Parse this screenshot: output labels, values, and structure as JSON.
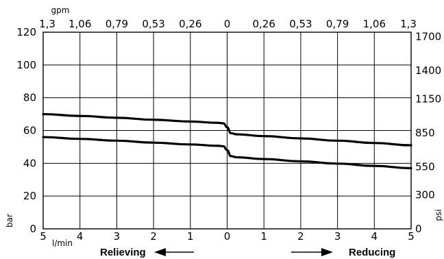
{
  "chart_data": {
    "type": "line",
    "x": [
      -5,
      -4,
      -3,
      -2,
      -1,
      -0.25,
      -0.1,
      0,
      0.1,
      0.25,
      1,
      2,
      3,
      4,
      5
    ],
    "x_tick_labels": [
      "5",
      "4",
      "3",
      "2",
      "1",
      "0",
      "1",
      "2",
      "3",
      "4",
      "5"
    ],
    "x_top_tick_labels": [
      "1,3",
      "1,06",
      "0,79",
      "0,53",
      "0,26",
      "0",
      "0,26",
      "0,53",
      "0,79",
      "1,06",
      "1,3"
    ],
    "ylim": [
      0,
      120
    ],
    "yticks": [
      0,
      20,
      40,
      60,
      80,
      100,
      120
    ],
    "y_right_tick_labels": [
      {
        "text": "0",
        "at": 0
      },
      {
        "text": "300",
        "at": 20.7
      },
      {
        "text": "550",
        "at": 37.9
      },
      {
        "text": "850",
        "at": 58.6
      },
      {
        "text": "1150",
        "at": 79.3
      },
      {
        "text": "1400",
        "at": 96.6
      },
      {
        "text": "1700",
        "at": 117.2
      }
    ],
    "series": [
      {
        "values": [
          70,
          68.9,
          67.8,
          66.6,
          65.5,
          64.7,
          64.4,
          62,
          58.4,
          57.7,
          56.6,
          55.2,
          53.8,
          52.4,
          51
        ]
      },
      {
        "values": [
          56,
          54.9,
          53.8,
          52.6,
          51.5,
          50.7,
          50.4,
          48,
          44.4,
          43.7,
          42.6,
          41.2,
          39.8,
          38.4,
          37
        ]
      }
    ],
    "xlabel": "l/min",
    "x_top_label": "gpm",
    "ylabel": "bar",
    "y_right_label": "psi",
    "left_direction_label": "Relieving",
    "right_direction_label": "Reducing",
    "grid": true,
    "colors": {
      "line": "#000000",
      "grid": "#000000",
      "background": "#ffffff"
    }
  }
}
